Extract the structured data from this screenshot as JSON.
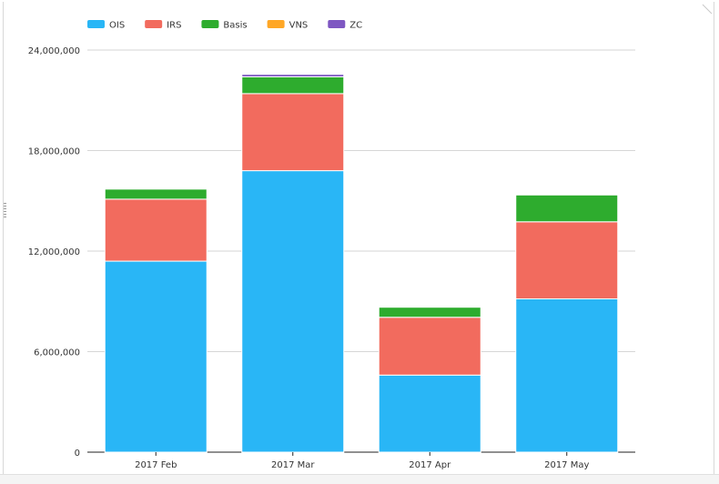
{
  "chart_data": {
    "type": "bar",
    "stacked": true,
    "categories": [
      "2017 Feb",
      "2017 Mar",
      "2017 Apr",
      "2017 May"
    ],
    "series": [
      {
        "name": "OIS",
        "color": "#29b6f6",
        "values": [
          11400000,
          16800000,
          4600000,
          9150000
        ]
      },
      {
        "name": "IRS",
        "color": "#f26b5e",
        "values": [
          3700000,
          4600000,
          3450000,
          4600000
        ]
      },
      {
        "name": "Basis",
        "color": "#2eac2e",
        "values": [
          600000,
          1000000,
          600000,
          1600000
        ]
      },
      {
        "name": "VNS",
        "color": "#ffa726",
        "values": [
          0,
          0,
          0,
          0
        ]
      },
      {
        "name": "ZC",
        "color": "#7e57c2",
        "values": [
          0,
          150000,
          0,
          0
        ]
      }
    ],
    "yticks": [
      "0",
      "6,000,000",
      "12,000,000",
      "18,000,000",
      "24,000,000"
    ],
    "ylim": [
      0,
      24000000
    ],
    "grid": true,
    "legend_position": "top-left"
  }
}
